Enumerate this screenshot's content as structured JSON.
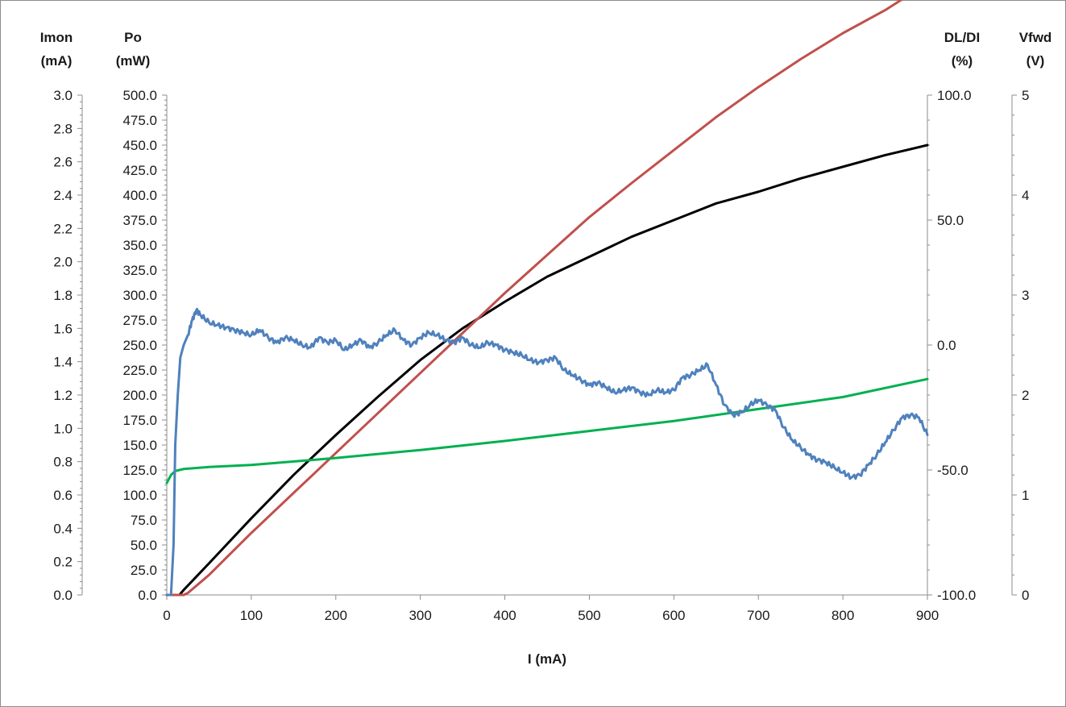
{
  "chart_data": {
    "type": "line",
    "title": "",
    "xlabel": "I (mA)",
    "xlim": [
      0,
      900
    ],
    "x_ticks": [
      0,
      100,
      200,
      300,
      400,
      500,
      600,
      700,
      800,
      900
    ],
    "grid": false,
    "legend": "none",
    "axes": {
      "imon": {
        "label_top": "Imon",
        "label_bottom": "(mA)",
        "lim": [
          0,
          3.0
        ],
        "step": 0.2,
        "decimals": 1
      },
      "po": {
        "label_top": "Po",
        "label_bottom": "(mW)",
        "lim": [
          0,
          500.0
        ],
        "step": 25,
        "decimals": 1
      },
      "dldi": {
        "label_top": "DL/DI",
        "label_bottom": "(%)",
        "lim": [
          -100.0,
          100.0
        ],
        "step": 50,
        "decimals": 1
      },
      "vfwd": {
        "label_top": "Vfwd",
        "label_bottom": "(V)",
        "lim": [
          0,
          5
        ],
        "step": 1,
        "decimals": 0
      }
    },
    "series": [
      {
        "axis": "imon",
        "color": "#000000",
        "x": [
          0,
          15,
          20,
          50,
          100,
          150,
          200,
          250,
          300,
          350,
          400,
          450,
          500,
          550,
          600,
          650,
          700,
          750,
          800,
          850,
          900
        ],
        "y": [
          0,
          0,
          0.03,
          0.19,
          0.46,
          0.72,
          0.96,
          1.19,
          1.41,
          1.6,
          1.76,
          1.91,
          2.03,
          2.15,
          2.25,
          2.35,
          2.42,
          2.5,
          2.57,
          2.64,
          2.7
        ]
      },
      {
        "axis": "po",
        "color": "#c0504d",
        "x": [
          0,
          20,
          25,
          50,
          100,
          150,
          200,
          250,
          300,
          350,
          400,
          450,
          500,
          550,
          600,
          650,
          700,
          750,
          800,
          850,
          900
        ],
        "y": [
          0,
          0,
          2,
          20,
          62,
          102,
          142,
          182,
          222,
          262,
          302,
          340,
          378,
          412,
          445,
          478,
          508,
          536,
          562,
          585,
          612
        ]
      },
      {
        "axis": "vfwd",
        "color": "#00b050",
        "x": [
          0,
          5,
          10,
          20,
          50,
          100,
          200,
          300,
          400,
          500,
          600,
          700,
          800,
          900
        ],
        "y": [
          1.12,
          1.2,
          1.24,
          1.26,
          1.28,
          1.3,
          1.37,
          1.45,
          1.54,
          1.64,
          1.74,
          1.86,
          1.98,
          2.16
        ]
      },
      {
        "axis": "dldi",
        "color": "#4f81bd",
        "x": [
          0,
          5,
          8,
          10,
          13,
          16,
          20,
          25,
          30,
          35,
          40,
          50,
          60,
          70,
          80,
          90,
          100,
          110,
          120,
          130,
          140,
          150,
          160,
          170,
          180,
          190,
          200,
          210,
          220,
          230,
          240,
          250,
          260,
          270,
          280,
          290,
          300,
          310,
          320,
          330,
          340,
          350,
          360,
          370,
          380,
          390,
          400,
          410,
          420,
          430,
          440,
          450,
          460,
          470,
          480,
          490,
          500,
          510,
          520,
          530,
          540,
          550,
          560,
          570,
          580,
          590,
          600,
          610,
          620,
          630,
          640,
          650,
          660,
          670,
          680,
          690,
          700,
          710,
          720,
          730,
          740,
          750,
          760,
          770,
          780,
          790,
          800,
          810,
          820,
          830,
          840,
          850,
          860,
          870,
          880,
          890,
          900
        ],
        "y": [
          -100,
          -100,
          -80,
          -40,
          -20,
          -5,
          0,
          4,
          10,
          14,
          12,
          9,
          8,
          7,
          6,
          5,
          4,
          6,
          3,
          1,
          3,
          2,
          0,
          -1,
          3,
          1,
          2,
          -2,
          0,
          2,
          -1,
          1,
          4,
          6,
          2,
          0,
          3,
          5,
          4,
          2,
          1,
          3,
          0,
          -1,
          1,
          0,
          -2,
          -3,
          -4,
          -6,
          -7,
          -6,
          -5,
          -10,
          -12,
          -14,
          -16,
          -15,
          -17,
          -19,
          -18,
          -17,
          -19,
          -20,
          -18,
          -19,
          -18,
          -13,
          -12,
          -10,
          -8,
          -16,
          -24,
          -28,
          -27,
          -24,
          -22,
          -24,
          -26,
          -33,
          -38,
          -41,
          -44,
          -46,
          -47,
          -49,
          -51,
          -53,
          -52,
          -48,
          -44,
          -39,
          -34,
          -29,
          -28,
          -29,
          -36
        ]
      }
    ]
  }
}
